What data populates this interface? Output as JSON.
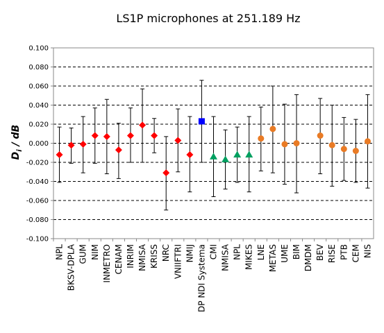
{
  "chart_data": {
    "type": "scatter",
    "title": "LS1P microphones at 251.189 Hz",
    "ylabel_main": "D",
    "ylabel_sub": "i",
    "ylabel_unit": " / dB",
    "ylim": [
      -0.1,
      0.1
    ],
    "ytick_step": 0.02,
    "ytick_labels": [
      "0.100",
      "0.080",
      "0.060",
      "0.040",
      "0.020",
      "0.000",
      "-0.020",
      "-0.040",
      "-0.060",
      "-0.080",
      "-0.100"
    ],
    "grid": true,
    "categories": [
      "NPL",
      "BKSV-DPLA",
      "GUM",
      "NIM",
      "INMETRO",
      "CENAM",
      "INRIM",
      "NMISA",
      "KRISS",
      "NRC",
      "VNIIFTRI",
      "NMIJ",
      "DP NDI Systema",
      "CMI",
      "NMISA",
      "NPL",
      "MIKES",
      "LNE",
      "METAS",
      "UME",
      "BIM",
      "DMDM",
      "BEV",
      "RISE",
      "PTB",
      "CEM",
      "NIS"
    ],
    "series": [
      {
        "marker": "diamond",
        "color": "#ff0000",
        "points": [
          {
            "x": "NPL",
            "y": -0.012,
            "err_low": -0.041,
            "err_high": 0.017
          },
          {
            "x": "BKSV-DPLA",
            "y": -0.002,
            "err_low": -0.021,
            "err_high": 0.016
          },
          {
            "x": "GUM",
            "y": -0.001,
            "err_low": -0.031,
            "err_high": 0.028
          },
          {
            "x": "NIM",
            "y": 0.008,
            "err_low": -0.021,
            "err_high": 0.037
          },
          {
            "x": "INMETRO",
            "y": 0.007,
            "err_low": -0.032,
            "err_high": 0.046
          },
          {
            "x": "CENAM",
            "y": -0.007,
            "err_low": -0.037,
            "err_high": 0.021
          },
          {
            "x": "INRIM",
            "y": 0.008,
            "err_low": -0.02,
            "err_high": 0.037
          },
          {
            "x": "NMISA",
            "y": 0.019,
            "err_low": -0.02,
            "err_high": 0.057
          },
          {
            "x": "KRISS",
            "y": 0.008,
            "err_low": -0.01,
            "err_high": 0.026
          },
          {
            "x": "NRC",
            "y": -0.031,
            "err_low": -0.07,
            "err_high": 0.007
          },
          {
            "x": "VNIIFTRI",
            "y": 0.003,
            "err_low": -0.03,
            "err_high": 0.036
          },
          {
            "x": "NMIJ",
            "y": -0.012,
            "err_low": -0.051,
            "err_high": 0.028
          }
        ]
      },
      {
        "marker": "square",
        "color": "#0000ff",
        "points": [
          {
            "x": "DP NDI Systema",
            "y": 0.023,
            "err_low": -0.02,
            "err_high": 0.066
          }
        ]
      },
      {
        "marker": "triangle",
        "color": "#00a060",
        "points": [
          {
            "x": "CMI",
            "y": -0.014,
            "err_low": -0.056,
            "err_high": 0.028
          },
          {
            "x": "NMISA",
            "y": -0.017,
            "err_low": -0.048,
            "err_high": 0.014
          },
          {
            "x": "NPL",
            "y": -0.012,
            "err_low": -0.041,
            "err_high": 0.017
          },
          {
            "x": "MIKES",
            "y": -0.012,
            "err_low": -0.051,
            "err_high": 0.028
          }
        ]
      },
      {
        "marker": "circle",
        "color": "#e97b25",
        "points": [
          {
            "x": "LNE",
            "y": 0.005,
            "err_low": -0.029,
            "err_high": 0.038
          },
          {
            "x": "METAS",
            "y": 0.015,
            "err_low": -0.031,
            "err_high": 0.06
          },
          {
            "x": "UME",
            "y": -0.001,
            "err_low": -0.043,
            "err_high": 0.041
          },
          {
            "x": "BIM",
            "y": 0.0,
            "err_low": -0.052,
            "err_high": 0.051
          },
          {
            "x": "BEV",
            "y": 0.008,
            "err_low": -0.032,
            "err_high": 0.047
          },
          {
            "x": "RISE",
            "y": -0.002,
            "err_low": -0.045,
            "err_high": 0.04
          },
          {
            "x": "PTB",
            "y": -0.006,
            "err_low": -0.039,
            "err_high": 0.027
          },
          {
            "x": "CEM",
            "y": -0.008,
            "err_low": -0.041,
            "err_high": 0.025
          },
          {
            "x": "NIS",
            "y": 0.002,
            "err_low": -0.047,
            "err_high": 0.051
          }
        ]
      }
    ]
  }
}
